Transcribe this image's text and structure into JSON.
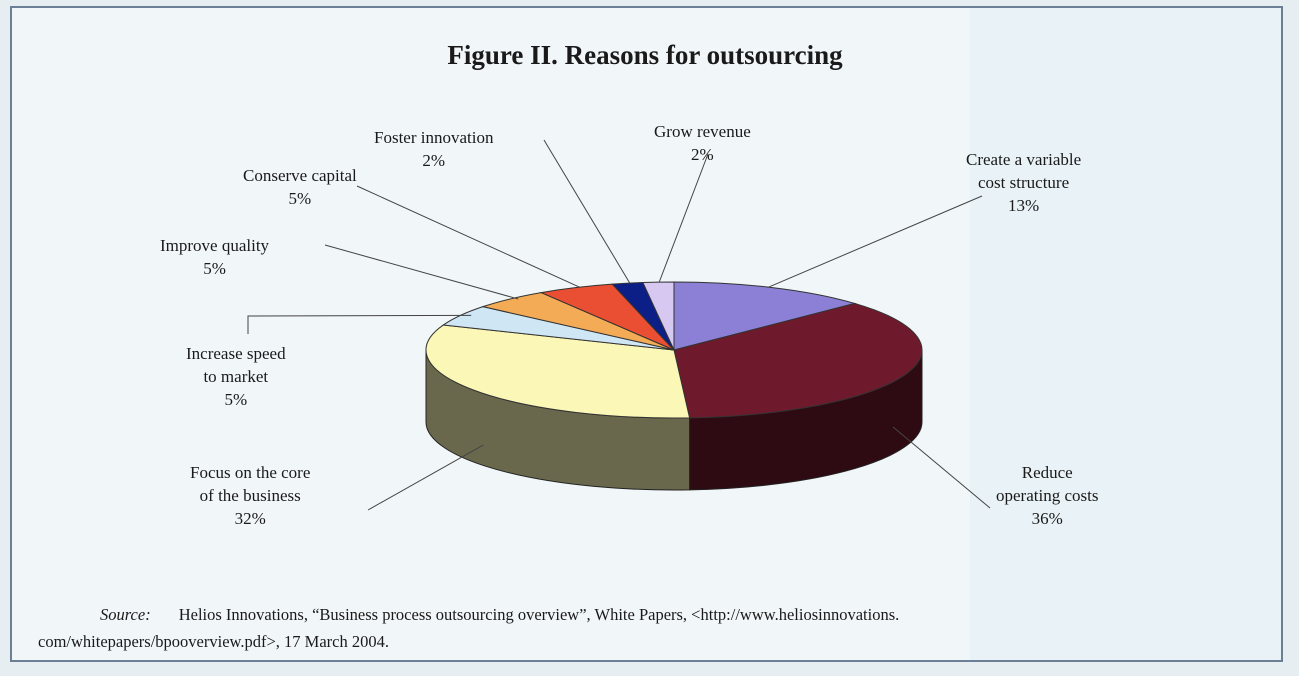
{
  "title": "Figure II.  Reasons for outsourcing",
  "source": {
    "label": "Source:",
    "line1": "Helios Innovations, “Business process outsourcing overview”, White Papers, <http://www.heliosinnovations.",
    "line2": "com/whitepapers/bpooverview.pdf>, 17 March 2004."
  },
  "chart_data": {
    "type": "pie",
    "title": "Figure II.  Reasons for outsourcing",
    "unit": "%",
    "slices": [
      {
        "label_lines": [
          "Create a variable",
          "cost structure"
        ],
        "value_label": "13%",
        "value": 13,
        "color": "#8b80d6"
      },
      {
        "label_lines": [
          "Reduce",
          "operating costs"
        ],
        "value_label": "36%",
        "value": 36,
        "color": "#6e1a2c"
      },
      {
        "label_lines": [
          "Focus on the core",
          "of the business"
        ],
        "value_label": "32%",
        "value": 32,
        "color": "#fbf7b6"
      },
      {
        "label_lines": [
          "Increase speed",
          "to market"
        ],
        "value_label": "5%",
        "value": 5,
        "color": "#cfe6f4"
      },
      {
        "label_lines": [
          "Improve quality"
        ],
        "value_label": "5%",
        "value": 5,
        "color": "#f4ab55"
      },
      {
        "label_lines": [
          "Conserve capital"
        ],
        "value_label": "5%",
        "value": 5,
        "color": "#ea4f33"
      },
      {
        "label_lines": [
          "Foster innovation"
        ],
        "value_label": "2%",
        "value": 2,
        "color": "#0b1f86"
      },
      {
        "label_lines": [
          "Grow revenue"
        ],
        "value_label": "2%",
        "value": 2,
        "color": "#d7c8f2"
      }
    ]
  }
}
